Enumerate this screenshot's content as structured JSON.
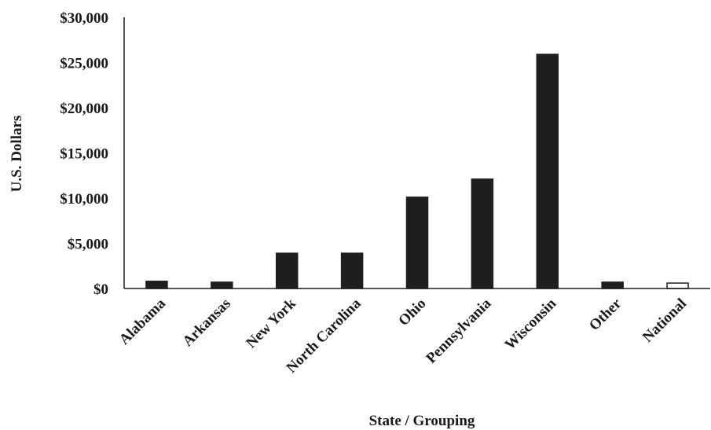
{
  "chart_data": {
    "type": "bar",
    "categories": [
      "Alabama",
      "Arkansas",
      "New York",
      "North Carolina",
      "Ohio",
      "Pennsylvania",
      "Wisconsin",
      "Other",
      "National"
    ],
    "values": [
      800,
      700,
      3900,
      3900,
      10100,
      12100,
      25900,
      700,
      600
    ],
    "title": "",
    "xlabel": "State / Grouping",
    "ylabel": "U.S. Dollars",
    "ylim": [
      0,
      30000
    ],
    "yticks": [
      0,
      5000,
      10000,
      15000,
      20000,
      25000,
      30000
    ],
    "ytick_labels": [
      "$0",
      "$5,000",
      "$10,000",
      "$15,000",
      "$20,000",
      "$25,000",
      "$30,000"
    ],
    "grid": false,
    "legend": "none",
    "bar_fill_colors": [
      "#1e1e1e",
      "#1e1e1e",
      "#1e1e1e",
      "#1e1e1e",
      "#1e1e1e",
      "#1e1e1e",
      "#1e1e1e",
      "#1e1e1e",
      "#ffffff"
    ],
    "bar_stroke_color": "#1e1e1e",
    "axis_color": "#1e1e1e"
  }
}
